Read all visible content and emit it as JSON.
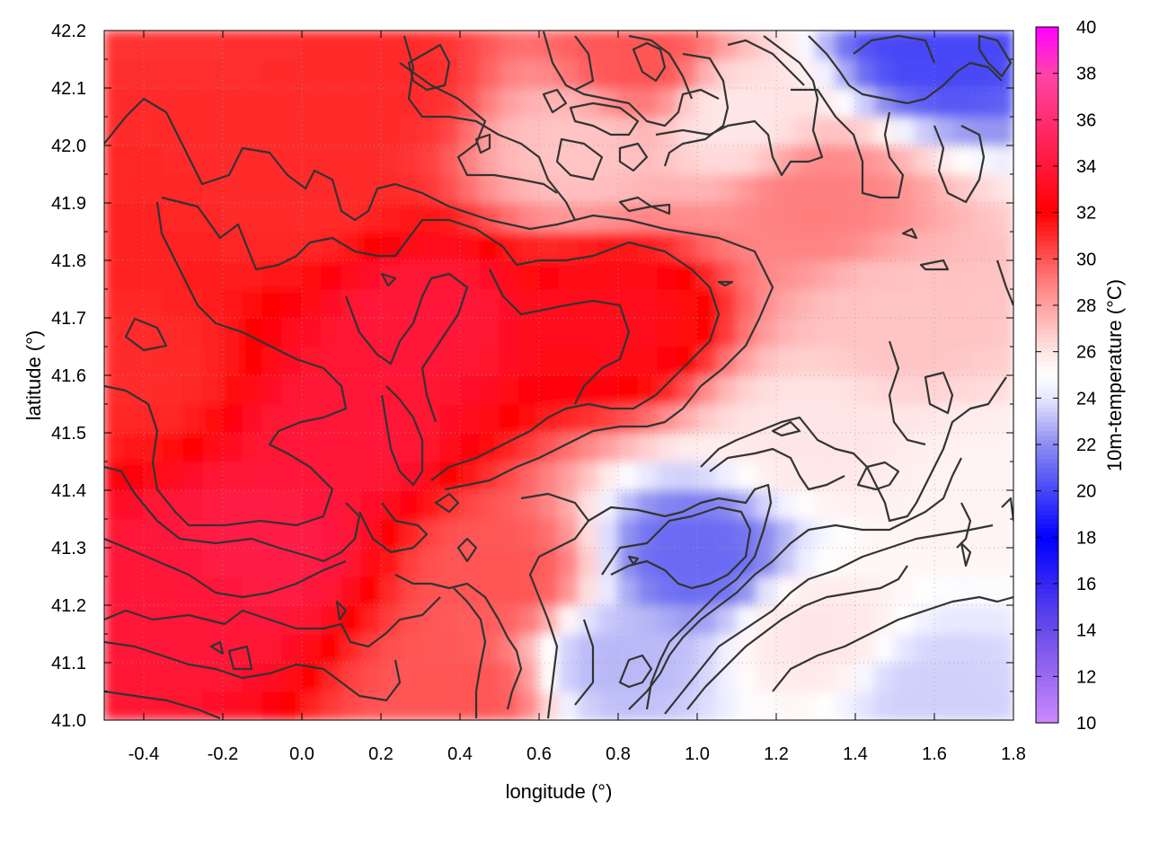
{
  "chart_data": {
    "type": "heatmap",
    "title": "",
    "xlabel": "longitude (°)",
    "ylabel": "latitude (°)",
    "colorbar_label": "10m-temperature (°C)",
    "xlim": [
      -0.5,
      1.8
    ],
    "ylim": [
      41.0,
      42.2
    ],
    "zlim": [
      10,
      40
    ],
    "x_ticks": [
      -0.4,
      -0.2,
      0.0,
      0.2,
      0.4,
      0.6,
      0.8,
      1.0,
      1.2,
      1.4,
      1.6,
      1.8
    ],
    "x_tick_labels": [
      "-0.4",
      "-0.2",
      "0.0",
      "0.2",
      "0.4",
      "0.6",
      "0.8",
      "1.0",
      "1.2",
      "1.4",
      "1.6",
      "1.8"
    ],
    "y_ticks": [
      41.0,
      41.1,
      41.2,
      41.3,
      41.4,
      41.5,
      41.6,
      41.7,
      41.8,
      41.9,
      42.0,
      42.1,
      42.2
    ],
    "y_tick_labels": [
      "41.0",
      "41.1",
      "41.2",
      "41.3",
      "41.4",
      "41.5",
      "41.6",
      "41.7",
      "41.8",
      "41.9",
      "42.0",
      "42.1",
      "42.2"
    ],
    "colorbar_ticks": [
      10,
      12,
      14,
      16,
      18,
      20,
      22,
      24,
      26,
      28,
      30,
      32,
      34,
      36,
      38,
      40
    ],
    "colorbar_tick_labels": [
      "10",
      "12",
      "14",
      "16",
      "18",
      "20",
      "22",
      "24",
      "26",
      "28",
      "30",
      "32",
      "34",
      "36",
      "38",
      "40"
    ],
    "grid": true,
    "colormap": [
      {
        "t": 10,
        "color": "#cc88ff"
      },
      {
        "t": 14,
        "color": "#6a4de6"
      },
      {
        "t": 18,
        "color": "#0000ff"
      },
      {
        "t": 22,
        "color": "#8c8cf0"
      },
      {
        "t": 24,
        "color": "#e6e6ff"
      },
      {
        "t": 25,
        "color": "#ffffff"
      },
      {
        "t": 26,
        "color": "#ffe6e6"
      },
      {
        "t": 29,
        "color": "#ff7f7f"
      },
      {
        "t": 32,
        "color": "#ff0000"
      },
      {
        "t": 35,
        "color": "#ff2255"
      },
      {
        "t": 38,
        "color": "#ff44aa"
      },
      {
        "t": 40,
        "color": "#ff00ff"
      }
    ],
    "field_samples": [
      {
        "lon": -0.3,
        "lat": 41.2,
        "t": 34
      },
      {
        "lon": -0.1,
        "lat": 41.3,
        "t": 34.5
      },
      {
        "lon": 0.1,
        "lat": 41.5,
        "t": 34
      },
      {
        "lon": -0.4,
        "lat": 41.6,
        "t": 31
      },
      {
        "lon": 0.3,
        "lat": 41.7,
        "t": 34
      },
      {
        "lon": 0.8,
        "lat": 41.7,
        "t": 33
      },
      {
        "lon": 0.0,
        "lat": 41.9,
        "t": 31
      },
      {
        "lon": 0.2,
        "lat": 42.1,
        "t": 31
      },
      {
        "lon": 0.7,
        "lat": 42.0,
        "t": 27
      },
      {
        "lon": 0.85,
        "lat": 42.15,
        "t": 30
      },
      {
        "lon": 1.1,
        "lat": 42.05,
        "t": 26
      },
      {
        "lon": 1.6,
        "lat": 42.18,
        "t": 20
      },
      {
        "lon": 1.3,
        "lat": 41.9,
        "t": 29
      },
      {
        "lon": 1.5,
        "lat": 41.7,
        "t": 27
      },
      {
        "lon": 1.3,
        "lat": 41.5,
        "t": 26
      },
      {
        "lon": 1.0,
        "lat": 41.28,
        "t": 21
      },
      {
        "lon": 0.8,
        "lat": 41.1,
        "t": 23
      },
      {
        "lon": 1.3,
        "lat": 41.15,
        "t": 26
      },
      {
        "lon": 1.6,
        "lat": 41.05,
        "t": 23.5
      },
      {
        "lon": 0.5,
        "lat": 41.25,
        "t": 30
      },
      {
        "lon": 0.4,
        "lat": 41.05,
        "t": 30
      },
      {
        "lon": 1.7,
        "lat": 41.4,
        "t": 25.5
      }
    ]
  }
}
